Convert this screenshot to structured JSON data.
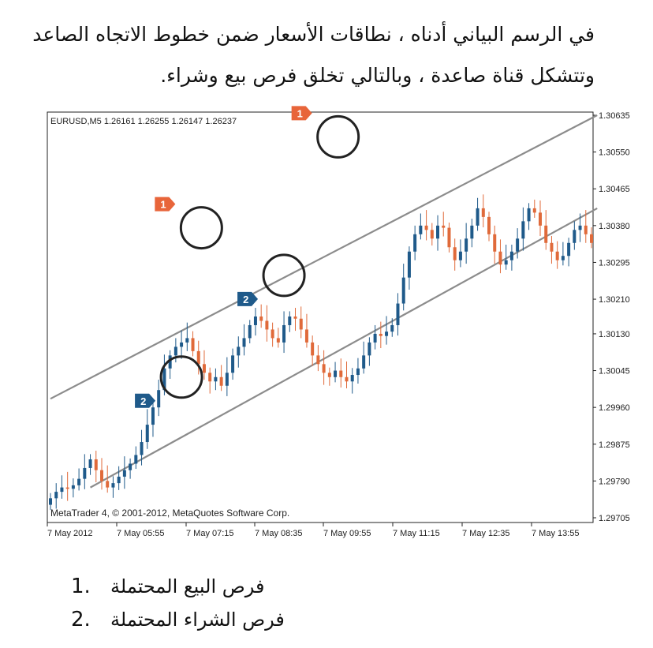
{
  "intro_text": "في الرسم البياني أدناه ، نطاقات الأسعار ضمن خطوط الاتجاه الصاعد وتتشكل قناة صاعدة ، وبالتالي تخلق فرص بيع وشراء.",
  "chart_data": {
    "type": "candlestick",
    "symbol_header": "EURUSD,M5  1.26161 1.26255 1.26147 1.26237",
    "copyright": "MetaTrader 4, © 2001-2012, MetaQuotes Software Corp.",
    "y_ticks": [
      "1.30635",
      "1.30550",
      "1.30465",
      "1.30380",
      "1.30295",
      "1.30210",
      "1.30130",
      "1.30045",
      "1.29960",
      "1.29875",
      "1.29790",
      "1.29705"
    ],
    "x_ticks": [
      "7 May 2012",
      "7 May 05:55",
      "7 May 07:15",
      "7 May 08:35",
      "7 May 09:55",
      "7 May 11:15",
      "7 May 12:35",
      "7 May 13:55"
    ],
    "ylim": [
      1.29705,
      1.30635
    ],
    "grid": false,
    "colors": {
      "up": "#1f5a8a",
      "down": "#e06a3a",
      "channel": "#8c8c8c",
      "marker1": "#e8653a",
      "marker2": "#1f5a8a"
    },
    "channel_upper": {
      "start": [
        0,
        1.2998
      ],
      "end": [
        96,
        1.30635
      ]
    },
    "channel_lower": {
      "start": [
        7,
        1.29775
      ],
      "end": [
        96,
        1.3042
      ]
    },
    "markers": [
      {
        "label": "1",
        "candle": 50.5,
        "price": 1.30585
      },
      {
        "label": "1",
        "candle": 26.5,
        "price": 1.30375
      },
      {
        "label": "2",
        "candle": 23.0,
        "price": 1.3003
      },
      {
        "label": "2",
        "candle": 41.0,
        "price": 1.30265
      }
    ],
    "closes": [
      1.2975,
      1.29765,
      1.29775,
      1.29772,
      1.2978,
      1.29795,
      1.2982,
      1.2984,
      1.29815,
      1.2979,
      1.29775,
      1.29785,
      1.298,
      1.29815,
      1.2983,
      1.2985,
      1.2988,
      1.2992,
      1.2996,
      1.3,
      1.3005,
      1.3008,
      1.301,
      1.3011,
      1.3012,
      1.3009,
      1.3006,
      1.3004,
      1.3002,
      1.3003,
      1.3001,
      1.3004,
      1.3008,
      1.301,
      1.3012,
      1.3015,
      1.3017,
      1.3016,
      1.3014,
      1.3012,
      1.3011,
      1.3015,
      1.3017,
      1.30165,
      1.3014,
      1.3011,
      1.3008,
      1.3006,
      1.3004,
      1.3003,
      1.30045,
      1.3003,
      1.3002,
      1.30035,
      1.3005,
      1.3008,
      1.3011,
      1.3013,
      1.30125,
      1.30135,
      1.3015,
      1.302,
      1.3026,
      1.3032,
      1.3036,
      1.3038,
      1.3037,
      1.3035,
      1.3038,
      1.30375,
      1.3033,
      1.303,
      1.3032,
      1.3035,
      1.3038,
      1.3042,
      1.304,
      1.3036,
      1.3032,
      1.3029,
      1.303,
      1.3032,
      1.3035,
      1.3039,
      1.3042,
      1.3041,
      1.3038,
      1.3034,
      1.3032,
      1.303,
      1.3031,
      1.3034,
      1.3037,
      1.3038,
      1.3036,
      1.3034
    ]
  },
  "legend_items": [
    {
      "number": "1.",
      "text": "فرص البيع المحتملة"
    },
    {
      "number": "2.",
      "text": "فرص الشراء المحتملة"
    }
  ]
}
